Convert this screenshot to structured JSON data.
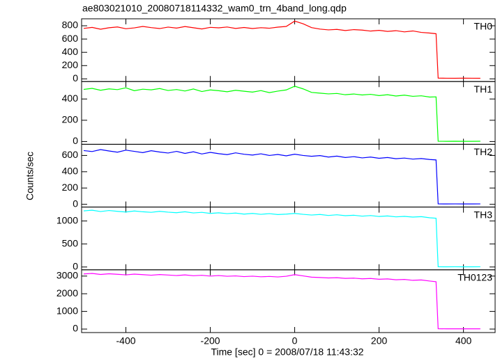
{
  "chart_data": [
    {
      "type": "line",
      "title": "ae803021010_20080718114332_wam0_trn_4band_long.qdp",
      "y_label": "Counts/sec",
      "x": [
        -500,
        -480,
        -460,
        -440,
        -420,
        -400,
        -380,
        -360,
        -340,
        -320,
        -300,
        -280,
        -260,
        -240,
        -220,
        -200,
        -180,
        -160,
        -140,
        -120,
        -100,
        -80,
        -60,
        -40,
        -20,
        0,
        20,
        40,
        60,
        80,
        100,
        120,
        140,
        160,
        180,
        200,
        220,
        240,
        260,
        280,
        300,
        320,
        335,
        340,
        360,
        380,
        400,
        420,
        440
      ],
      "series": [
        {
          "name": "TH0",
          "color": "#ff0000",
          "values": [
            760,
            775,
            748,
            770,
            782,
            755,
            768,
            790,
            772,
            758,
            780,
            765,
            788,
            770,
            752,
            776,
            769,
            781,
            760,
            774,
            758,
            771,
            763,
            779,
            790,
            870,
            830,
            772,
            750,
            738,
            745,
            728,
            742,
            735,
            720,
            731,
            715,
            726,
            708,
            722,
            700,
            690,
            680,
            12,
            10,
            9,
            11,
            10,
            9
          ]
        }
      ],
      "xlim": [
        -505,
        475
      ],
      "ylim": [
        -40,
        905
      ],
      "yticks": [
        0,
        200,
        400,
        600,
        800
      ]
    },
    {
      "type": "line",
      "x": [
        -500,
        -480,
        -460,
        -440,
        -420,
        -400,
        -380,
        -360,
        -340,
        -320,
        -300,
        -280,
        -260,
        -240,
        -220,
        -200,
        -180,
        -160,
        -140,
        -120,
        -100,
        -80,
        -60,
        -40,
        -20,
        0,
        20,
        40,
        60,
        80,
        100,
        120,
        140,
        160,
        180,
        200,
        220,
        240,
        260,
        280,
        300,
        320,
        335,
        340,
        360,
        380,
        400,
        420,
        440
      ],
      "series": [
        {
          "name": "TH1",
          "color": "#00ff00",
          "values": [
            490,
            500,
            482,
            495,
            488,
            505,
            478,
            492,
            486,
            498,
            480,
            489,
            475,
            494,
            470,
            485,
            478,
            468,
            482,
            473,
            465,
            479,
            460,
            474,
            485,
            520,
            495,
            462,
            455,
            448,
            452,
            440,
            447,
            438,
            444,
            432,
            440,
            428,
            436,
            425,
            430,
            418,
            420,
            3,
            2,
            3,
            2,
            2,
            3
          ]
        }
      ],
      "xlim": [
        -505,
        475
      ],
      "ylim": [
        -26,
        564
      ],
      "yticks": [
        0,
        200,
        400
      ]
    },
    {
      "type": "line",
      "x": [
        -500,
        -480,
        -460,
        -440,
        -420,
        -400,
        -380,
        -360,
        -340,
        -320,
        -300,
        -280,
        -260,
        -240,
        -220,
        -200,
        -180,
        -160,
        -140,
        -120,
        -100,
        -80,
        -60,
        -40,
        -20,
        0,
        20,
        40,
        60,
        80,
        100,
        120,
        140,
        160,
        180,
        200,
        220,
        240,
        260,
        280,
        300,
        320,
        335,
        340,
        360,
        380,
        400,
        420,
        440
      ],
      "series": [
        {
          "name": "TH2",
          "color": "#0000ff",
          "values": [
            660,
            648,
            672,
            655,
            640,
            665,
            650,
            635,
            658,
            642,
            630,
            650,
            625,
            645,
            618,
            638,
            622,
            610,
            632,
            615,
            605,
            620,
            600,
            612,
            595,
            615,
            600,
            590,
            598,
            580,
            592,
            575,
            585,
            570,
            580,
            565,
            575,
            560,
            568,
            555,
            562,
            550,
            545,
            5,
            4,
            5,
            4,
            4,
            5
          ]
        }
      ],
      "xlim": [
        -505,
        475
      ],
      "ylim": [
        -34,
        737
      ],
      "yticks": [
        0,
        200,
        400,
        600
      ]
    },
    {
      "type": "line",
      "x": [
        -500,
        -480,
        -460,
        -440,
        -420,
        -400,
        -380,
        -360,
        -340,
        -320,
        -300,
        -280,
        -260,
        -240,
        -220,
        -200,
        -180,
        -160,
        -140,
        -120,
        -100,
        -80,
        -60,
        -40,
        -20,
        0,
        20,
        40,
        60,
        80,
        100,
        120,
        140,
        160,
        180,
        200,
        220,
        240,
        260,
        280,
        300,
        320,
        335,
        340,
        360,
        380,
        400,
        420,
        440
      ],
      "series": [
        {
          "name": "TH3",
          "color": "#00ffff",
          "values": [
            1220,
            1235,
            1205,
            1228,
            1210,
            1195,
            1218,
            1200,
            1188,
            1210,
            1192,
            1180,
            1200,
            1175,
            1188,
            1165,
            1178,
            1160,
            1172,
            1150,
            1165,
            1145,
            1160,
            1140,
            1150,
            1165,
            1145,
            1130,
            1142,
            1120,
            1135,
            1115,
            1125,
            1105,
            1118,
            1098,
            1110,
            1090,
            1100,
            1085,
            1095,
            1070,
            1060,
            5,
            4,
            5,
            4,
            4,
            5
          ]
        }
      ],
      "xlim": [
        -505,
        475
      ],
      "ylim": [
        -61,
        1303
      ],
      "yticks": [
        0,
        500,
        1000
      ]
    },
    {
      "type": "line",
      "x_label": "Time [sec] 0 = 2008/07/18 11:43:32",
      "x": [
        -500,
        -480,
        -460,
        -440,
        -420,
        -400,
        -380,
        -360,
        -340,
        -320,
        -300,
        -280,
        -260,
        -240,
        -220,
        -200,
        -180,
        -160,
        -140,
        -120,
        -100,
        -80,
        -60,
        -40,
        -20,
        0,
        20,
        40,
        60,
        80,
        100,
        120,
        140,
        160,
        180,
        200,
        220,
        240,
        260,
        280,
        300,
        320,
        335,
        340,
        360,
        380,
        400,
        420,
        440
      ],
      "series": [
        {
          "name": "TH0123",
          "color": "#ff00ff",
          "values": [
            3120,
            3150,
            3090,
            3130,
            3100,
            3070,
            3110,
            3080,
            3050,
            3085,
            3060,
            3030,
            3065,
            3020,
            3045,
            3000,
            3030,
            2990,
            3010,
            2970,
            2995,
            2960,
            2980,
            2950,
            2990,
            3080,
            3010,
            2940,
            2920,
            2895,
            2910,
            2870,
            2885,
            2845,
            2865,
            2820,
            2840,
            2790,
            2810,
            2760,
            2780,
            2720,
            2680,
            18,
            15,
            14,
            16,
            15,
            14
          ]
        }
      ],
      "xlim": [
        -505,
        475
      ],
      "ylim": [
        -197,
        3355
      ],
      "yticks": [
        0,
        1000,
        2000,
        3000
      ],
      "xticks": [
        -400,
        -200,
        0,
        200,
        400
      ]
    }
  ]
}
